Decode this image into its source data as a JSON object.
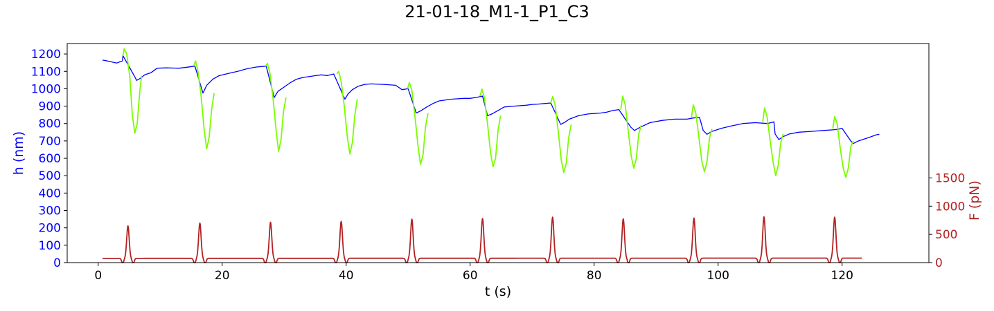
{
  "chart_data": {
    "type": "line",
    "title": "21-01-18_M1-1_P1_C3",
    "xlabel": "t (s)",
    "ylabel_left": "h (nm)",
    "ylabel_right": "F (pN)",
    "xlim": [
      -5,
      134
    ],
    "ylim_left": [
      0,
      1260
    ],
    "ylim_right": [
      0,
      3880
    ],
    "x_ticks": [
      0,
      20,
      40,
      60,
      80,
      100,
      120
    ],
    "y_left_ticks": [
      0,
      100,
      200,
      300,
      400,
      500,
      600,
      700,
      800,
      900,
      1000,
      1100,
      1200
    ],
    "y_right_ticks": [
      0,
      500,
      1000,
      1500
    ],
    "colors": {
      "h_left_axis": "#0000ff",
      "h_relax": "#0000ff",
      "h_compress": "#7cfc00",
      "force": "#b22222"
    },
    "grid": false,
    "series": [
      {
        "axis": "left",
        "color": "#0000ff",
        "points": [
          [
            0.7,
            1165
          ],
          [
            1.5,
            1160
          ],
          [
            2.5,
            1152
          ],
          [
            3.0,
            1148
          ],
          [
            3.5,
            1155
          ],
          [
            3.9,
            1160
          ],
          [
            4.0,
            1190
          ],
          [
            5.8,
            1075
          ],
          [
            6.2,
            1048
          ],
          [
            6.8,
            1060
          ],
          [
            7.5,
            1080
          ],
          [
            8.5,
            1092
          ],
          [
            9.5,
            1118
          ],
          [
            11,
            1120
          ],
          [
            13,
            1118
          ],
          [
            14,
            1122
          ],
          [
            15.2,
            1128
          ],
          [
            15.6,
            1130
          ],
          [
            16.9,
            975
          ],
          [
            17.5,
            1020
          ],
          [
            18.5,
            1055
          ],
          [
            19.5,
            1075
          ],
          [
            21,
            1088
          ],
          [
            22.5,
            1100
          ],
          [
            24,
            1115
          ],
          [
            25.5,
            1125
          ],
          [
            26.5,
            1128
          ],
          [
            27.1,
            1130
          ],
          [
            28.4,
            950
          ],
          [
            29,
            985
          ],
          [
            30,
            1010
          ],
          [
            31,
            1035
          ],
          [
            32,
            1055
          ],
          [
            33,
            1065
          ],
          [
            35,
            1075
          ],
          [
            36,
            1080
          ],
          [
            37,
            1076
          ],
          [
            38,
            1085
          ],
          [
            39.8,
            940
          ],
          [
            40.3,
            970
          ],
          [
            41,
            995
          ],
          [
            42,
            1015
          ],
          [
            43,
            1025
          ],
          [
            44,
            1028
          ],
          [
            46,
            1025
          ],
          [
            48,
            1020
          ],
          [
            49,
            995
          ],
          [
            50,
            1000
          ],
          [
            51.3,
            860
          ],
          [
            52,
            872
          ],
          [
            53,
            895
          ],
          [
            54,
            915
          ],
          [
            55,
            930
          ],
          [
            57,
            940
          ],
          [
            59,
            945
          ],
          [
            60,
            945
          ],
          [
            61,
            950
          ],
          [
            62,
            958
          ],
          [
            62.8,
            845
          ],
          [
            63.5,
            855
          ],
          [
            64.5,
            875
          ],
          [
            65.5,
            895
          ],
          [
            67,
            900
          ],
          [
            69,
            905
          ],
          [
            70,
            910
          ],
          [
            71,
            912
          ],
          [
            72,
            915
          ],
          [
            73,
            918
          ],
          [
            74.6,
            795
          ],
          [
            75.3,
            808
          ],
          [
            76,
            825
          ],
          [
            77.5,
            845
          ],
          [
            79,
            855
          ],
          [
            81,
            860
          ],
          [
            82,
            865
          ],
          [
            83,
            875
          ],
          [
            84,
            880
          ],
          [
            85.9,
            780
          ],
          [
            86.5,
            760
          ],
          [
            87.5,
            780
          ],
          [
            89,
            805
          ],
          [
            91,
            818
          ],
          [
            93,
            825
          ],
          [
            95,
            825
          ],
          [
            96,
            832
          ],
          [
            97,
            835
          ],
          [
            97.6,
            760
          ],
          [
            98.2,
            738
          ],
          [
            99,
            755
          ],
          [
            100.5,
            772
          ],
          [
            102,
            785
          ],
          [
            104,
            800
          ],
          [
            106,
            805
          ],
          [
            108,
            800
          ],
          [
            109,
            810
          ],
          [
            109.2,
            740
          ],
          [
            109.8,
            708
          ],
          [
            110.5,
            725
          ],
          [
            111.5,
            740
          ],
          [
            113,
            750
          ],
          [
            115,
            755
          ],
          [
            117,
            760
          ],
          [
            119,
            765
          ],
          [
            120,
            772
          ],
          [
            121.4,
            700
          ],
          [
            121.8,
            685
          ],
          [
            122.5,
            698
          ],
          [
            123.5,
            710
          ],
          [
            124.5,
            722
          ],
          [
            125.5,
            735
          ],
          [
            126,
            738
          ]
        ]
      },
      {
        "axis": "left",
        "color": "#7cfc00",
        "segments": [
          [
            [
              4.0,
              1190
            ],
            [
              4.2,
              1230
            ],
            [
              4.6,
              1200
            ],
            [
              5.1,
              1070
            ],
            [
              5.5,
              850
            ],
            [
              5.9,
              745
            ],
            [
              6.3,
              800
            ],
            [
              6.7,
              980
            ],
            [
              7.0,
              1075
            ]
          ],
          [
            [
              15.4,
              1130
            ],
            [
              15.7,
              1160
            ],
            [
              16.1,
              1100
            ],
            [
              16.6,
              960
            ],
            [
              17.1,
              760
            ],
            [
              17.5,
              655
            ],
            [
              17.9,
              720
            ],
            [
              18.3,
              880
            ],
            [
              18.7,
              975
            ]
          ],
          [
            [
              27.0,
              1130
            ],
            [
              27.3,
              1145
            ],
            [
              27.7,
              1090
            ],
            [
              28.2,
              950
            ],
            [
              28.7,
              760
            ],
            [
              29.1,
              640
            ],
            [
              29.5,
              710
            ],
            [
              29.9,
              870
            ],
            [
              30.3,
              950
            ]
          ],
          [
            [
              38.5,
              1085
            ],
            [
              38.8,
              1100
            ],
            [
              39.2,
              1040
            ],
            [
              39.7,
              900
            ],
            [
              40.2,
              720
            ],
            [
              40.6,
              625
            ],
            [
              41,
              690
            ],
            [
              41.4,
              850
            ],
            [
              41.8,
              940
            ]
          ],
          [
            [
              49.9,
              1000
            ],
            [
              50.2,
              1035
            ],
            [
              50.6,
              990
            ],
            [
              51.1,
              840
            ],
            [
              51.6,
              670
            ],
            [
              52.0,
              565
            ],
            [
              52.4,
              620
            ],
            [
              52.8,
              780
            ],
            [
              53.2,
              860
            ]
          ],
          [
            [
              61.6,
              958
            ],
            [
              61.9,
              998
            ],
            [
              62.3,
              950
            ],
            [
              62.8,
              800
            ],
            [
              63.3,
              630
            ],
            [
              63.7,
              552
            ],
            [
              64.1,
              600
            ],
            [
              64.5,
              760
            ],
            [
              64.9,
              845
            ]
          ],
          [
            [
              73.0,
              918
            ],
            [
              73.3,
              955
            ],
            [
              73.7,
              910
            ],
            [
              74.2,
              760
            ],
            [
              74.7,
              590
            ],
            [
              75.1,
              518
            ],
            [
              75.5,
              570
            ],
            [
              75.9,
              720
            ],
            [
              76.3,
              795
            ]
          ],
          [
            [
              84.3,
              880
            ],
            [
              84.6,
              958
            ],
            [
              85.0,
              910
            ],
            [
              85.5,
              760
            ],
            [
              86.0,
              610
            ],
            [
              86.4,
              543
            ],
            [
              86.8,
              600
            ],
            [
              87.2,
              740
            ],
            [
              87.6,
              790
            ]
          ],
          [
            [
              95.7,
              835
            ],
            [
              96.0,
              908
            ],
            [
              96.4,
              860
            ],
            [
              96.9,
              720
            ],
            [
              97.4,
              580
            ],
            [
              97.8,
              522
            ],
            [
              98.2,
              580
            ],
            [
              98.6,
              715
            ],
            [
              99.0,
              770
            ]
          ],
          [
            [
              107.2,
              810
            ],
            [
              107.5,
              890
            ],
            [
              107.9,
              840
            ],
            [
              108.4,
              700
            ],
            [
              108.9,
              570
            ],
            [
              109.3,
              500
            ],
            [
              109.7,
              560
            ],
            [
              110.1,
              690
            ],
            [
              110.5,
              740
            ]
          ],
          [
            [
              118.5,
              772
            ],
            [
              118.8,
              840
            ],
            [
              119.2,
              800
            ],
            [
              119.7,
              660
            ],
            [
              120.2,
              540
            ],
            [
              120.6,
              490
            ],
            [
              121.0,
              545
            ],
            [
              121.4,
              665
            ],
            [
              121.8,
              700
            ]
          ]
        ]
      },
      {
        "axis": "right",
        "color": "#b22222",
        "baseline_start": 75,
        "baseline_end": 80,
        "x_range": [
          0.7,
          123.2
        ],
        "peaks": [
          {
            "t": 4.8,
            "f": 650
          },
          {
            "t": 16.4,
            "f": 700
          },
          {
            "t": 27.8,
            "f": 715
          },
          {
            "t": 39.2,
            "f": 730
          },
          {
            "t": 50.6,
            "f": 770
          },
          {
            "t": 62.0,
            "f": 780
          },
          {
            "t": 73.3,
            "f": 805
          },
          {
            "t": 84.7,
            "f": 775
          },
          {
            "t": 96.1,
            "f": 790
          },
          {
            "t": 107.4,
            "f": 810
          },
          {
            "t": 118.8,
            "f": 805
          }
        ]
      }
    ]
  }
}
